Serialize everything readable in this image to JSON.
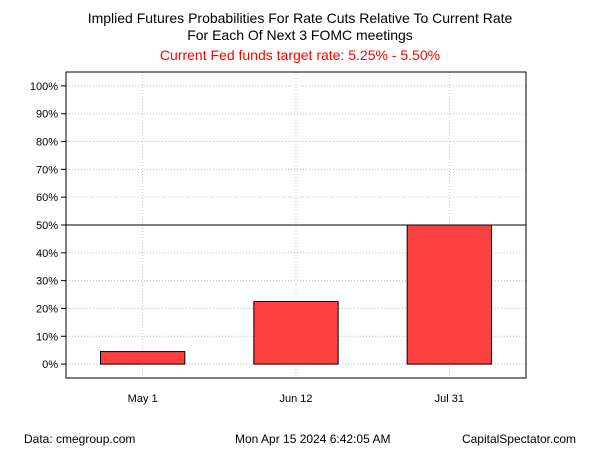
{
  "header": {
    "title_line1": "Implied Futures Probabilities For Rate Cuts Relative To Current Rate",
    "title_line2": "For Each Of Next 3 FOMC meetings",
    "subtitle": "Current Fed funds target rate: 5.25% - 5.50%"
  },
  "footer": {
    "source": "Data: cmegroup.com",
    "timestamp": "Mon Apr 15 2024 6:42:05 AM",
    "brand": "CapitalSpectator.com"
  },
  "colors": {
    "bar_fill": "#ff4040",
    "subtitle_color": "#ff0000",
    "grid_color": "#bdbdbd",
    "axis_color": "#000000"
  },
  "chart_data": {
    "type": "bar",
    "title": "Implied Futures Probabilities For Rate Cuts Relative To Current Rate For Each Of Next 3 FOMC meetings",
    "subtitle": "Current Fed funds target rate: 5.25% - 5.50%",
    "categories": [
      "May 1",
      "Jun 12",
      "Jul 31"
    ],
    "values": [
      4.5,
      22.5,
      50
    ],
    "y_ticks": [
      0,
      10,
      20,
      30,
      40,
      50,
      60,
      70,
      80,
      90,
      100
    ],
    "y_tick_labels": [
      "0%",
      "10%",
      "20%",
      "30%",
      "40%",
      "50%",
      "60%",
      "70%",
      "80%",
      "90%",
      "100%"
    ],
    "ylim": [
      -5,
      105
    ],
    "reference_line": 50,
    "grid": true,
    "xlabel": "",
    "ylabel": ""
  }
}
